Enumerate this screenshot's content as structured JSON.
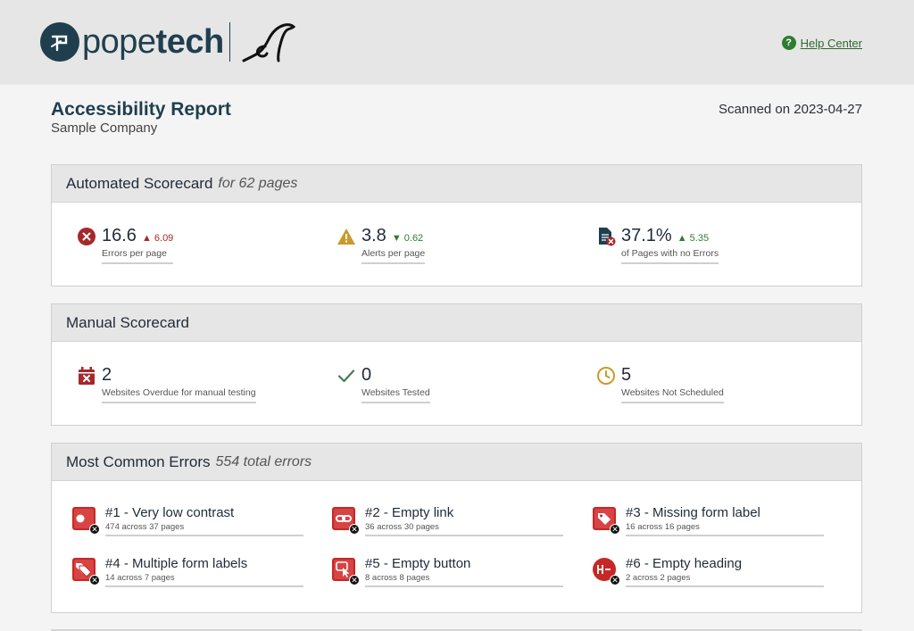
{
  "header": {
    "brand": {
      "pope": "pope",
      "tech": "tech"
    },
    "help_label": "Help Center"
  },
  "report": {
    "title": "Accessibility Report",
    "company": "Sample Company",
    "scanned": "Scanned on 2023-04-27"
  },
  "automated": {
    "title": "Automated Scorecard",
    "subtitle": "for 62 pages",
    "stats": [
      {
        "value": "16.6",
        "delta": "6.09",
        "direction": "up",
        "label": "Errors per page",
        "icon": "error-circle-icon"
      },
      {
        "value": "3.8",
        "delta": "0.62",
        "direction": "down",
        "label": "Alerts per page",
        "icon": "alert-triangle-icon"
      },
      {
        "value": "37.1%",
        "delta": "5.35",
        "direction": "up",
        "label": "of Pages with no Errors",
        "icon": "document-error-icon"
      }
    ]
  },
  "manual": {
    "title": "Manual Scorecard",
    "stats": [
      {
        "value": "2",
        "label": "Websites Overdue for manual testing",
        "icon": "calendar-x-icon"
      },
      {
        "value": "0",
        "label": "Websites Tested",
        "icon": "checkmark-icon"
      },
      {
        "value": "5",
        "label": "Websites Not Scheduled",
        "icon": "clock-icon"
      }
    ]
  },
  "errors": {
    "title": "Most Common Errors",
    "subtitle": "554 total errors",
    "items": [
      {
        "title": "#1 - Very low contrast",
        "detail": "474 across 37 pages",
        "icon": "low-contrast-icon"
      },
      {
        "title": "#2 - Empty link",
        "detail": "36 across 30 pages",
        "icon": "empty-link-icon"
      },
      {
        "title": "#3 - Missing form label",
        "detail": "16 across 16 pages",
        "icon": "missing-label-icon"
      },
      {
        "title": "#4 - Multiple form labels",
        "detail": "14 across 7 pages",
        "icon": "multiple-labels-icon"
      },
      {
        "title": "#5 - Empty button",
        "detail": "8 across 8 pages",
        "icon": "empty-button-icon"
      },
      {
        "title": "#6 - Empty heading",
        "detail": "2 across 2 pages",
        "icon": "empty-heading-icon"
      }
    ]
  },
  "colors": {
    "brand": "#1f3f4e",
    "error_red": "#a5282b",
    "alert_gold": "#c89b2c",
    "success_green": "#2e7d32",
    "header_bg": "#e6e6e6"
  }
}
